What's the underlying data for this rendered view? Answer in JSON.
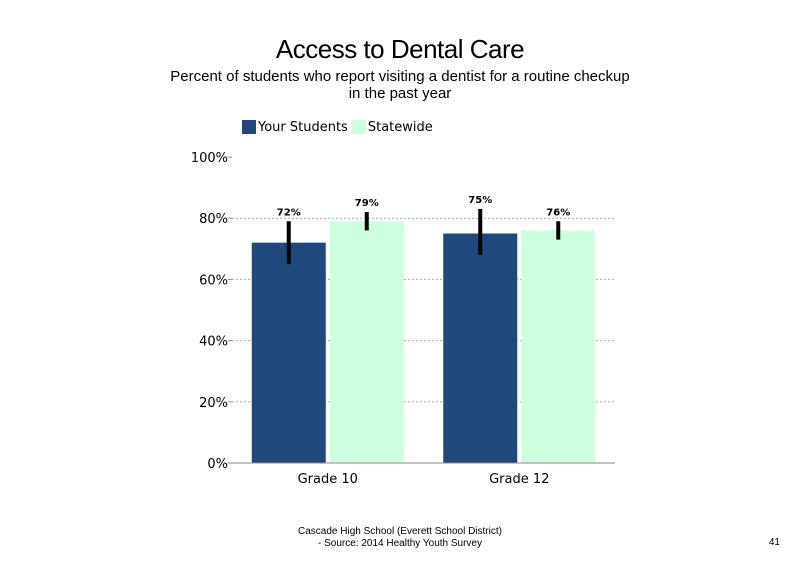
{
  "slide": {
    "title": "Access to Dental Care",
    "subtitle": "Percent of students who report visiting a dentist for a routine checkup in the past year",
    "footer_line1": "Cascade High School (Everett School District)",
    "footer_line2": "- Source: 2014 Healthy Youth Survey",
    "page_number": "41"
  },
  "colors": {
    "your_students": "#1f497d",
    "statewide": "#ccffdd",
    "error_bar": "#000000",
    "gridline": "#aaaaaa",
    "axis": "#888888"
  },
  "chart_data": {
    "type": "bar",
    "title": "Access to Dental Care",
    "subtitle": "Percent of students who report visiting a dentist for a routine checkup in the past year",
    "categories": [
      "Grade 10",
      "Grade 12"
    ],
    "series": [
      {
        "name": "Your Students",
        "values": [
          72,
          75
        ],
        "labels": [
          "72%",
          "75%"
        ],
        "error_low": [
          65,
          68
        ],
        "error_high": [
          79,
          83
        ]
      },
      {
        "name": "Statewide",
        "values": [
          79,
          76
        ],
        "labels": [
          "79%",
          "76%"
        ],
        "error_low": [
          76,
          73
        ],
        "error_high": [
          82,
          79
        ]
      }
    ],
    "yticks": [
      "0%",
      "20%",
      "40%",
      "60%",
      "80%",
      "100%"
    ],
    "ylim": [
      0,
      100
    ],
    "xlabel": "",
    "ylabel": "",
    "grid": true,
    "legend_position": "top"
  }
}
